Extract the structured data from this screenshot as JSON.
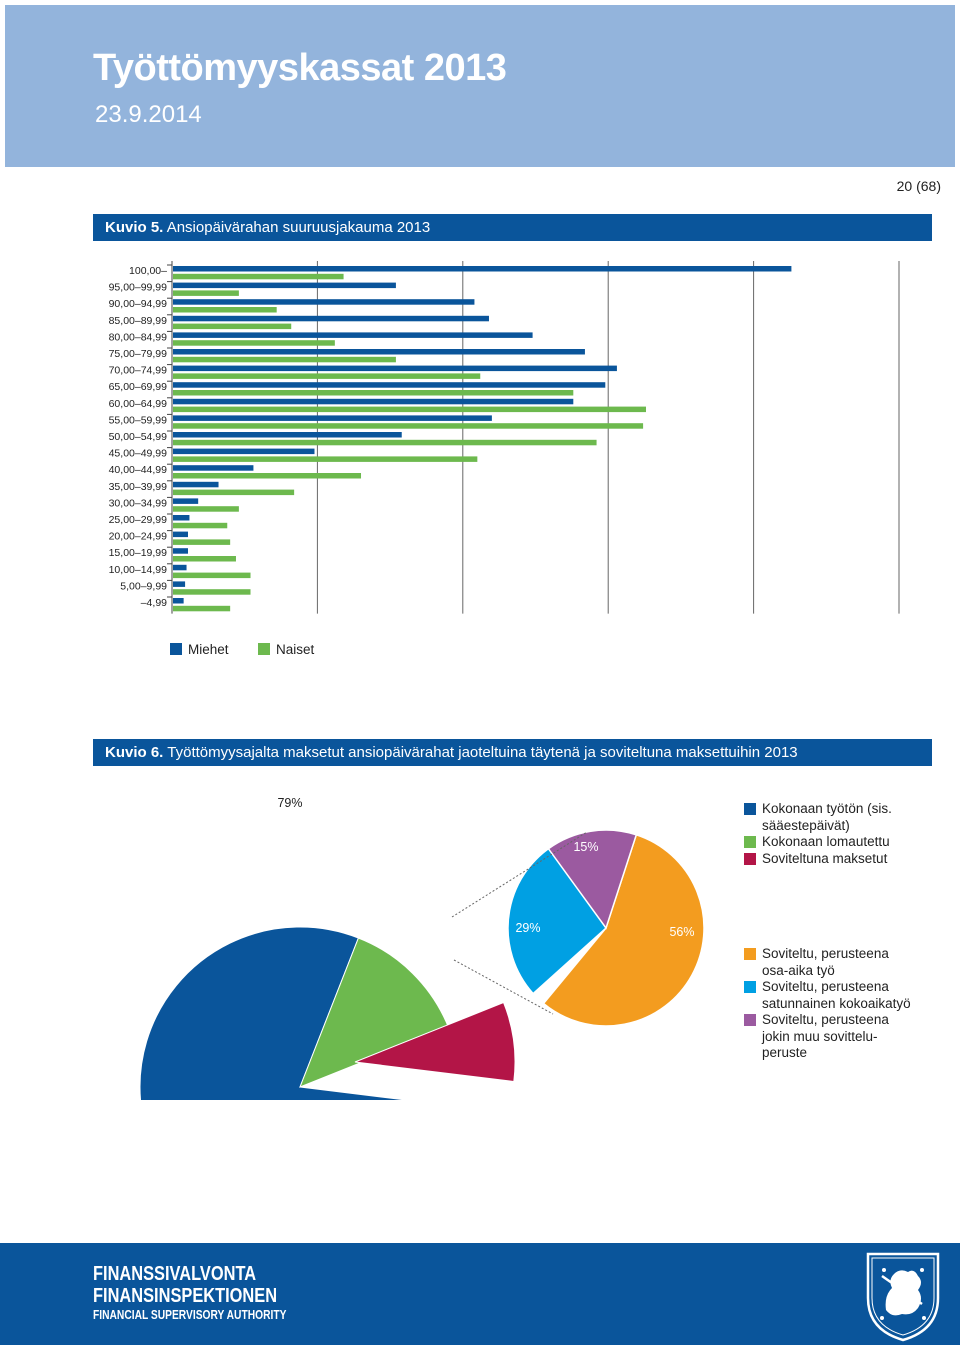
{
  "header": {
    "title": "Työttömyyskassat 2013",
    "date": "23.9.2014"
  },
  "page_number": "20 (68)",
  "figure5": {
    "label": "Kuvio 5.",
    "title": "Ansiopäivärahan suuruusjakauma 2013"
  },
  "figure6": {
    "label": "Kuvio 6.",
    "title": "Työttömyysajalta maksetut ansiopäivärahat jaoteltuina täytenä ja soviteltuna maksettuihin 2013"
  },
  "chart_data": [
    {
      "type": "bar",
      "orientation": "horizontal",
      "categories": [
        "100,00–",
        "95,00–99,99",
        "90,00–94,99",
        "85,00–89,99",
        "80,00–84,99",
        "75,00–79,99",
        "70,00–74,99",
        "65,00–69,99",
        "60,00–64,99",
        "55,00–59,99",
        "50,00–54,99",
        "45,00–49,99",
        "40,00–44,99",
        "35,00–39,99",
        "30,00–34,99",
        "25,00–29,99",
        "20,00–24,99",
        "15,00–19,99",
        "10,00–14,99",
        "5,00–9,99",
        "–4,99"
      ],
      "series": [
        {
          "name": "Miehet",
          "color": "#0a559b",
          "values": [
            21300,
            7700,
            10400,
            10900,
            12400,
            14200,
            15300,
            14900,
            13800,
            11000,
            7900,
            4900,
            2800,
            1600,
            900,
            600,
            550,
            550,
            500,
            450,
            400
          ]
        },
        {
          "name": "Naiset",
          "color": "#6db94e",
          "values": [
            5900,
            2300,
            3600,
            4100,
            5600,
            7700,
            10600,
            13800,
            16300,
            16200,
            14600,
            10500,
            6500,
            4200,
            2300,
            1900,
            2000,
            2200,
            2700,
            2700,
            2000
          ]
        }
      ],
      "xticks": [
        "0",
        "5 000",
        "10 000",
        "15 000",
        "20 000",
        "25 000"
      ],
      "xlim": [
        0,
        25000
      ],
      "grid": "vertical",
      "legend": "bottom-left"
    },
    {
      "type": "pie",
      "slices": [
        {
          "label": "Kokonaan työtön (sis. sääestepäivät)",
          "value": 79,
          "text": "79%",
          "color": "#0a559b"
        },
        {
          "label": "Kokonaan lomautettu",
          "value": 13,
          "text": "13%",
          "color": "#6db94e"
        },
        {
          "label": "Soviteltuna maksetut",
          "value": 8,
          "text": "8%",
          "color": "#b31547"
        }
      ],
      "legend": "right"
    },
    {
      "type": "pie",
      "breakdown_of": "Soviteltuna maksetut",
      "slices": [
        {
          "label": "Soviteltu, perusteena osa-aika työ",
          "value": 56,
          "text": "56%",
          "color": "#f39c1f"
        },
        {
          "label": "Soviteltu, perusteena satunnainen kokoaikatyö",
          "value": 29,
          "text": "29%",
          "color": "#00a0e3"
        },
        {
          "label": "Soviteltu, perusteena jokin muu sovittelu-peruste",
          "value": 15,
          "text": "15%",
          "color": "#9b5aa0"
        }
      ],
      "legend": "right"
    }
  ],
  "footer": {
    "line1": "FINANSSIVALVONTA",
    "line2": "FINANSINSPEKTIONEN",
    "line3": "FINANCIAL SUPERVISORY AUTHORITY",
    "crest_icon": "finnish-lion-crest-icon"
  }
}
